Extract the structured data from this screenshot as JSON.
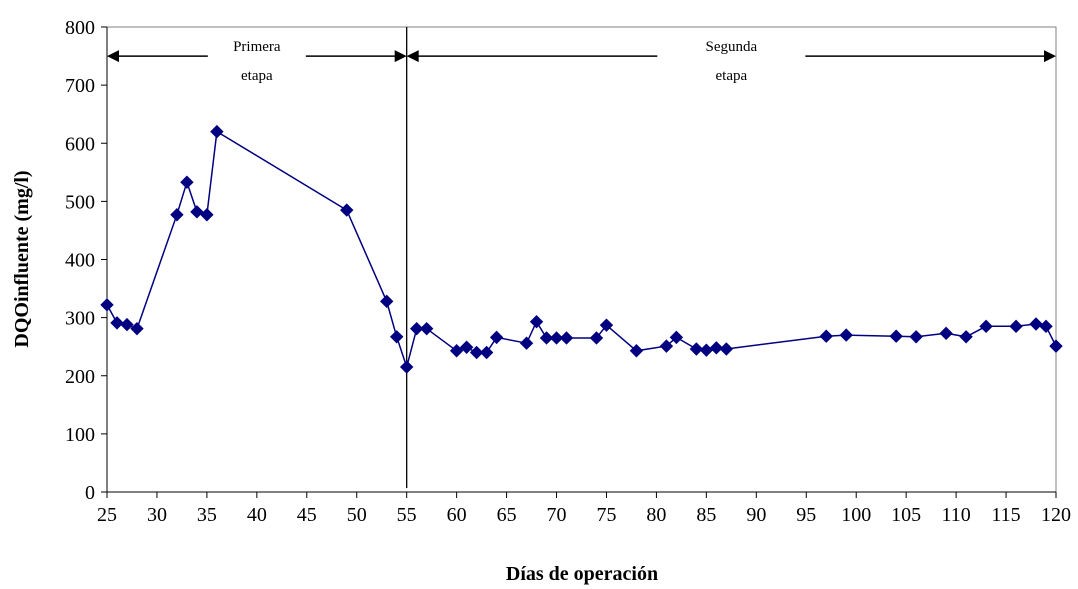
{
  "chart_data": {
    "type": "line",
    "xlabel": "Días de operación",
    "ylabel": "DQOinfluente (mg/l)",
    "xlim": [
      25,
      120
    ],
    "ylim": [
      0,
      800
    ],
    "x_ticks": [
      25,
      30,
      35,
      40,
      45,
      50,
      55,
      60,
      65,
      70,
      75,
      80,
      85,
      90,
      95,
      100,
      105,
      110,
      115,
      120
    ],
    "y_ticks": [
      0,
      100,
      200,
      300,
      400,
      500,
      600,
      700,
      800
    ],
    "grid": false,
    "series": [
      {
        "color": "#000080",
        "marker": "diamond",
        "points": [
          [
            25,
            322
          ],
          [
            26,
            291
          ],
          [
            27,
            288
          ],
          [
            28,
            281
          ],
          [
            32,
            477
          ],
          [
            33,
            533
          ],
          [
            34,
            482
          ],
          [
            35,
            477
          ],
          [
            36,
            620
          ],
          [
            49,
            485
          ],
          [
            53,
            328
          ],
          [
            54,
            267
          ],
          [
            55,
            215
          ],
          [
            56,
            281
          ],
          [
            57,
            281
          ],
          [
            60,
            243
          ],
          [
            61,
            249
          ],
          [
            62,
            240
          ],
          [
            63,
            240
          ],
          [
            64,
            266
          ],
          [
            67,
            256
          ],
          [
            68,
            293
          ],
          [
            69,
            265
          ],
          [
            70,
            265
          ],
          [
            71,
            265
          ],
          [
            74,
            265
          ],
          [
            75,
            287
          ],
          [
            78,
            243
          ],
          [
            81,
            251
          ],
          [
            82,
            266
          ],
          [
            84,
            246
          ],
          [
            85,
            244
          ],
          [
            86,
            248
          ],
          [
            87,
            246
          ],
          [
            97,
            268
          ],
          [
            99,
            270
          ],
          [
            104,
            268
          ],
          [
            106,
            267
          ],
          [
            109,
            273
          ],
          [
            111,
            267
          ],
          [
            113,
            285
          ],
          [
            116,
            285
          ],
          [
            118,
            289
          ],
          [
            119,
            285
          ],
          [
            120,
            251
          ]
        ]
      }
    ],
    "divider_x": 55,
    "annotations": [
      {
        "text_line1": "Primera",
        "text_line2": "etapa",
        "from_x": 25,
        "to_x": 55,
        "y": 750,
        "label_x": 40
      },
      {
        "text_line1": "Segunda",
        "text_line2": "etapa",
        "from_x": 55,
        "to_x": 120,
        "y": 750,
        "label_x": 87.5
      }
    ]
  }
}
